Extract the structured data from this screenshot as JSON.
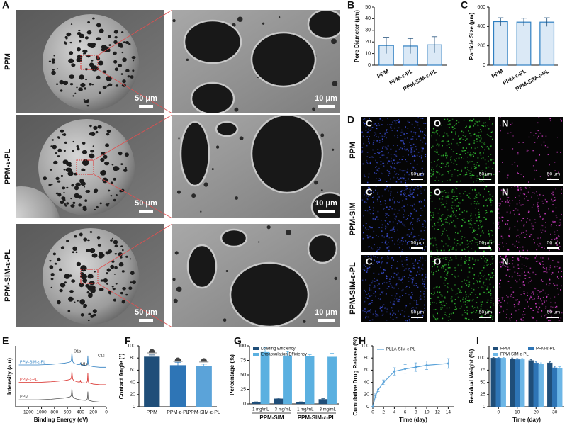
{
  "panel_labels": [
    "A",
    "B",
    "C",
    "D",
    "E",
    "F",
    "G",
    "H",
    "I"
  ],
  "sem": {
    "rows": [
      {
        "label": "PPM",
        "scale_left": "50 μm",
        "scale_right": "10 μm"
      },
      {
        "label": "PPM-ε-PL",
        "scale_left": "50 μm",
        "scale_right": "10 μm"
      },
      {
        "label": "PPM-SIM-ε-PL",
        "scale_left": "50 μm",
        "scale_right": "10 μm"
      }
    ]
  },
  "eds": {
    "elements": [
      "C",
      "O",
      "N"
    ],
    "colors": [
      "#3b4fd6",
      "#34c234",
      "#d43fc8"
    ],
    "rows": [
      {
        "label": "PPM",
        "scales": [
          "50 μm",
          "50 μm",
          "50 μm"
        ]
      },
      {
        "label": "PPM-SIM",
        "scales": [
          "50 μm",
          "50 μm",
          "50 μm"
        ]
      },
      {
        "label": "PPM-SIM-ε-PL",
        "scales": [
          "50 μm",
          "50 μm",
          "50 μm"
        ]
      }
    ]
  },
  "chart_data": [
    {
      "type": "bar",
      "ylabel": "Pore Diameter (μm)",
      "categories": [
        "PPM",
        "PPM-ε-PL",
        "PPM-SIM-ε-PL"
      ],
      "series": [
        {
          "color": "#2f7fc1",
          "values": [
            17,
            16.5,
            17.5
          ],
          "errors": [
            7,
            6.5,
            7
          ]
        }
      ],
      "ylim": [
        0,
        50
      ],
      "yticks": [
        0,
        10,
        20,
        30,
        40,
        50
      ],
      "hollow": true,
      "rotate_labels": true
    },
    {
      "type": "bar",
      "ylabel": "Particle Size (μm)",
      "categories": [
        "PPM",
        "PPM-ε-PL",
        "PPM-SIM-ε-PL"
      ],
      "series": [
        {
          "color": "#2f7fc1",
          "values": [
            450,
            445,
            445
          ],
          "errors": [
            40,
            40,
            45
          ]
        }
      ],
      "ylim": [
        0,
        600
      ],
      "yticks": [
        0,
        200,
        400,
        600
      ],
      "hollow": true,
      "rotate_labels": true
    },
    {
      "type": "line",
      "xlabel": "Binding Energy (eV)",
      "ylabel": "Intensity (a.u)",
      "x": [
        1350,
        1250,
        1150,
        1050,
        950,
        850,
        750,
        650,
        600,
        560,
        540,
        531,
        520,
        500,
        450,
        420,
        405,
        400,
        395,
        380,
        320,
        295,
        290,
        285,
        280,
        270,
        200,
        100,
        0
      ],
      "series": [
        {
          "name": "PPM-SIM-ε-PL",
          "color": "#2f7fc1",
          "values": [
            7.2,
            7.2,
            7.2,
            7.2,
            7.25,
            7.3,
            7.4,
            7.5,
            7.6,
            7.7,
            7.9,
            9.4,
            7.8,
            7.5,
            7.3,
            7.25,
            7.3,
            7.6,
            7.3,
            7.15,
            7.1,
            7.3,
            7.6,
            8.8,
            7.5,
            7.1,
            6.9,
            6.8,
            6.8
          ]
        },
        {
          "name": "PPM-ε-PL",
          "color": "#d9302c",
          "values": [
            4.2,
            4.2,
            4.2,
            4.2,
            4.25,
            4.3,
            4.4,
            4.5,
            4.6,
            4.7,
            4.9,
            6.2,
            4.8,
            4.5,
            4.3,
            4.25,
            4.3,
            4.6,
            4.3,
            4.15,
            4.1,
            4.3,
            4.6,
            5.8,
            4.5,
            4.1,
            3.9,
            3.8,
            3.8
          ]
        },
        {
          "name": "PPM",
          "color": "#555555",
          "values": [
            1.2,
            1.2,
            1.2,
            1.2,
            1.25,
            1.3,
            1.4,
            1.5,
            1.6,
            1.7,
            1.9,
            3.2,
            1.8,
            1.5,
            1.3,
            1.25,
            1.2,
            1.2,
            1.2,
            1.15,
            1.1,
            1.3,
            1.6,
            2.6,
            1.5,
            1.1,
            0.9,
            0.8,
            0.8
          ]
        }
      ],
      "xlim": [
        1400,
        0
      ],
      "xticks": [
        1200,
        1000,
        800,
        600,
        400,
        200,
        0
      ],
      "ylim": [
        0,
        10.5
      ],
      "yticks": [],
      "legend": "inline",
      "annotations": [
        "O1s",
        "N1s",
        "C1s"
      ]
    },
    {
      "type": "bar",
      "ylabel": "Contact Angle (°)",
      "categories": [
        "PPM",
        "PPM-ε-PL",
        "PPM-SIM-ε-PL"
      ],
      "series": [
        {
          "colors": [
            "#1f4e79",
            "#2e75b6",
            "#5ba3d9"
          ],
          "values": [
            82,
            68,
            67
          ],
          "errors": [
            3,
            5,
            3
          ]
        }
      ],
      "ylim": [
        0,
        100
      ],
      "yticks": [
        0,
        20,
        40,
        60,
        80,
        100
      ],
      "droplet_icons": true
    },
    {
      "type": "bar",
      "ylabel": "Percentage (%)",
      "categories": [
        "1 mg/mL",
        "3 mg/mL",
        "1 mg/mL",
        "3 mg/mL"
      ],
      "groups": [
        {
          "label": "PPM-SIM"
        },
        {
          "label": "PPM-SIM-ε-PL"
        }
      ],
      "series": [
        {
          "name": "Loading Efficiency",
          "color": "#1f4e79",
          "values": [
            3,
            9,
            3,
            8
          ],
          "errors": [
            0.5,
            1,
            0.5,
            1
          ]
        },
        {
          "name": "Encapsulation Efficiency",
          "color": "#5bb0e0",
          "values": [
            89,
            83,
            82,
            81
          ],
          "errors": [
            8,
            7,
            3,
            6
          ]
        }
      ],
      "ylim": [
        0,
        100
      ],
      "yticks": [
        0,
        25,
        50,
        75,
        100
      ],
      "legend": "upper left"
    },
    {
      "type": "line",
      "xlabel": "Time (day)",
      "ylabel": "Cumulative Drug Release (%)",
      "x": [
        0,
        0.5,
        1,
        2,
        4,
        6,
        8,
        10,
        14
      ],
      "series": [
        {
          "name": "PLLA-SIM-ε-PL",
          "color": "#5ba3d9",
          "values": [
            0,
            18,
            28,
            40,
            58,
            62,
            65,
            68,
            71
          ],
          "errors": [
            0,
            3,
            3,
            4,
            6,
            7,
            7,
            7,
            8
          ]
        }
      ],
      "xlim": [
        0,
        15
      ],
      "xticks": [
        0,
        2,
        4,
        6,
        8,
        10,
        12,
        14
      ],
      "ylim": [
        0,
        100
      ],
      "yticks": [
        0,
        20,
        40,
        60,
        80,
        100
      ],
      "legend": "upper left",
      "markers": true
    },
    {
      "type": "bar",
      "xlabel": "Time (day)",
      "ylabel": "Residual Weight (%)",
      "x": [
        0,
        10,
        20,
        30
      ],
      "series": [
        {
          "name": "PPM",
          "color": "#1f4e79",
          "values": [
            100,
            98,
            95,
            90
          ],
          "errors": [
            1,
            2,
            2,
            2
          ]
        },
        {
          "name": "PPM-ε-PL",
          "color": "#2e75b6",
          "values": [
            100,
            97,
            90,
            80
          ],
          "errors": [
            1,
            2,
            2,
            3
          ]
        },
        {
          "name": "PPM-SIM-ε-PL",
          "color": "#6cb6e6",
          "values": [
            100,
            97,
            88,
            79
          ],
          "errors": [
            1,
            2,
            2,
            3
          ]
        }
      ],
      "xlim": [
        -5,
        35
      ],
      "xticks": [
        0,
        10,
        20,
        30
      ],
      "ylim": [
        0,
        125
      ],
      "yticks": [
        0,
        25,
        50,
        75,
        100
      ],
      "legend": "upper left",
      "legend_columns": 2
    }
  ]
}
